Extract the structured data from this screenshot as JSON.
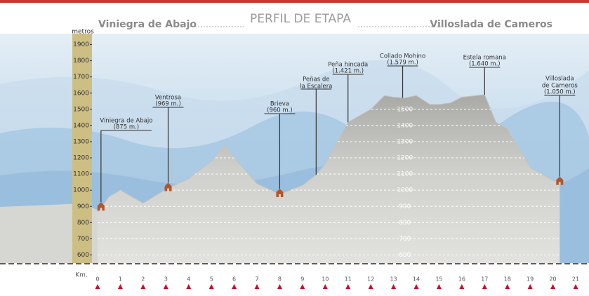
{
  "chart_data": {
    "type": "area",
    "title": "PERFIL DE ETAPA",
    "start": "Viniegra de Abajo",
    "end": "Villoslada de Cameros",
    "y_label": "metros",
    "x_label": "Km.",
    "x": [
      0,
      0.5,
      1,
      2,
      3,
      4,
      5,
      5.6,
      6,
      7,
      8,
      9,
      9.6,
      10,
      11,
      12,
      12.6,
      13,
      13.5,
      14,
      14.6,
      15,
      15.5,
      16,
      17,
      17.5,
      18,
      19,
      20,
      20.3
    ],
    "values": [
      862,
      960,
      1000,
      920,
      1005,
      1070,
      1180,
      1280,
      1200,
      1040,
      975,
      1030,
      1095,
      1160,
      1420,
      1500,
      1585,
      1575,
      1570,
      1585,
      1530,
      1530,
      1540,
      1575,
      1590,
      1420,
      1380,
      1140,
      1060,
      1050
    ],
    "color": "#c4c4c0",
    "xlim": [
      0,
      21
    ],
    "xticks": [
      0,
      1,
      2,
      3,
      4,
      5,
      6,
      7,
      8,
      9,
      10,
      11,
      12,
      13,
      14,
      15,
      16,
      17,
      18,
      19,
      20,
      21
    ],
    "ylim": [
      550,
      1950
    ],
    "yticks": [
      600,
      700,
      800,
      900,
      1000,
      1100,
      1200,
      1300,
      1400,
      1500,
      1600,
      1700,
      1800,
      1900
    ],
    "grid": true,
    "annotations": [
      {
        "text": [
          "Viniegra de Abajo"
        ],
        "note": "(875 m.)",
        "x": 0.15
      },
      {
        "text": [
          "Ventrosa"
        ],
        "note": "(969 m.)",
        "x": 3.1
      },
      {
        "text": [
          "Brieva"
        ],
        "note": "(960 m.)",
        "x": 8
      },
      {
        "text": [
          "Peñas de",
          "la Escalera"
        ],
        "x": 9.6
      },
      {
        "text": [
          "Peña hincada"
        ],
        "note": "(1.421 m.)",
        "x": 11
      },
      {
        "text": [
          "Collado Mohino"
        ],
        "note": "(1.579 m.)",
        "x": 13.4
      },
      {
        "text": [
          "Estela romana"
        ],
        "note": "(1.640 m.)",
        "x": 17
      },
      {
        "text": [
          "Villoslada",
          "de Cameros"
        ],
        "note": "(1.050 m.)",
        "x": 20.3
      }
    ]
  }
}
